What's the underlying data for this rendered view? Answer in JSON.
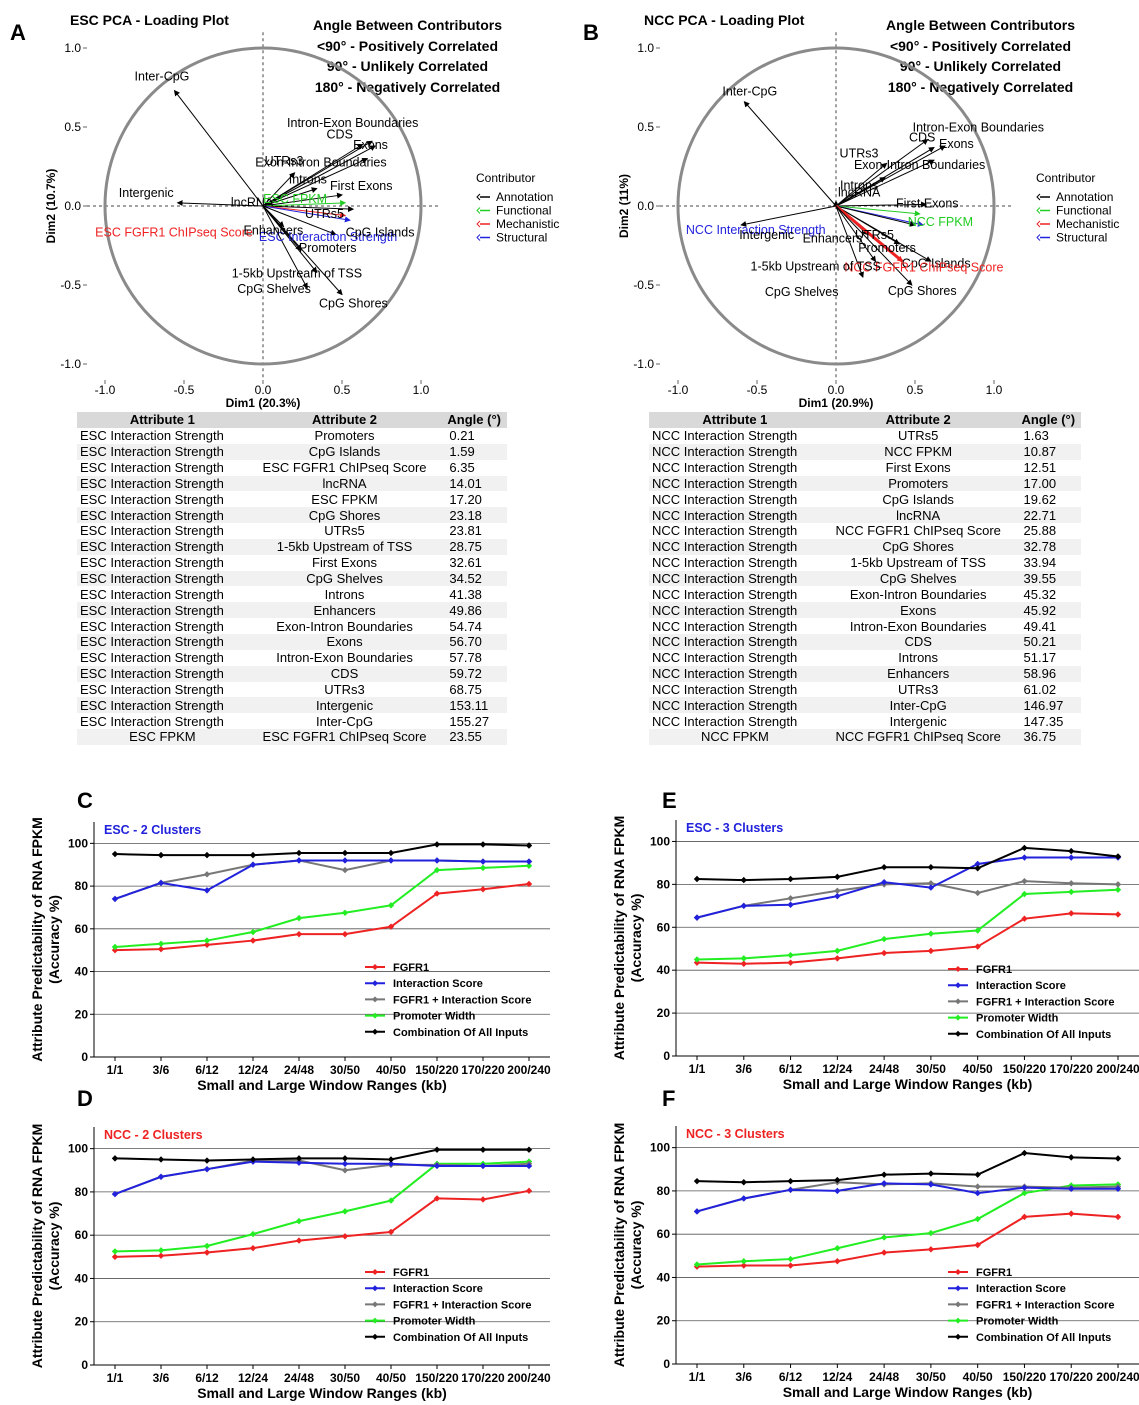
{
  "panels": {
    "A": "A",
    "B": "B",
    "C": "C",
    "D": "D",
    "E": "E",
    "F": "F"
  },
  "pca_legend": {
    "line1": "Angle Between Contributors",
    "line2": "<90° - Positively Correlated",
    "line3": "90° - Unlikely Correlated",
    "line4": "180° - Negatively Correlated",
    "title": "Contributor",
    "items": [
      {
        "label": "Annotation",
        "color": "#000000"
      },
      {
        "label": "Functional",
        "color": "#22cc22"
      },
      {
        "label": "Mechanistic",
        "color": "#ee2222"
      },
      {
        "label": "Structural",
        "color": "#2222dd"
      }
    ]
  },
  "tables": {
    "headers": [
      "Attribute 1",
      "Attribute 2",
      "Angle (°)"
    ],
    "esc": [
      [
        "ESC Interaction Strength",
        "Promoters",
        "0.21"
      ],
      [
        "ESC Interaction Strength",
        "CpG Islands",
        "1.59"
      ],
      [
        "ESC Interaction Strength",
        "ESC FGFR1 ChIPseq Score",
        "6.35"
      ],
      [
        "ESC Interaction Strength",
        "lncRNA",
        "14.01"
      ],
      [
        "ESC Interaction Strength",
        "ESC FPKM",
        "17.20"
      ],
      [
        "ESC Interaction Strength",
        "CpG Shores",
        "23.18"
      ],
      [
        "ESC Interaction Strength",
        "UTRs5",
        "23.81"
      ],
      [
        "ESC Interaction Strength",
        "1-5kb Upstream of TSS",
        "28.75"
      ],
      [
        "ESC Interaction Strength",
        "First Exons",
        "32.61"
      ],
      [
        "ESC Interaction Strength",
        "CpG Shelves",
        "34.52"
      ],
      [
        "ESC Interaction Strength",
        "Introns",
        "41.38"
      ],
      [
        "ESC Interaction Strength",
        "Enhancers",
        "49.86"
      ],
      [
        "ESC Interaction Strength",
        "Exon-Intron Boundaries",
        "54.74"
      ],
      [
        "ESC Interaction Strength",
        "Exons",
        "56.70"
      ],
      [
        "ESC Interaction Strength",
        "Intron-Exon Boundaries",
        "57.78"
      ],
      [
        "ESC Interaction Strength",
        "CDS",
        "59.72"
      ],
      [
        "ESC Interaction Strength",
        "UTRs3",
        "68.75"
      ],
      [
        "ESC Interaction Strength",
        "Intergenic",
        "153.11"
      ],
      [
        "ESC Interaction Strength",
        "Inter-CpG",
        "155.27"
      ],
      [
        "ESC FPKM",
        "ESC FGFR1 ChIPseq Score",
        "23.55"
      ]
    ],
    "ncc": [
      [
        "NCC Interaction Strength",
        "UTRs5",
        "1.63"
      ],
      [
        "NCC Interaction Strength",
        "NCC FPKM",
        "10.87"
      ],
      [
        "NCC Interaction Strength",
        "First Exons",
        "12.51"
      ],
      [
        "NCC Interaction Strength",
        "Promoters",
        "17.00"
      ],
      [
        "NCC Interaction Strength",
        "CpG Islands",
        "19.62"
      ],
      [
        "NCC Interaction Strength",
        "lncRNA",
        "22.71"
      ],
      [
        "NCC Interaction Strength",
        "NCC FGFR1 ChIPseq Score",
        "25.88"
      ],
      [
        "NCC Interaction Strength",
        "CpG Shores",
        "32.78"
      ],
      [
        "NCC Interaction Strength",
        "1-5kb Upstream of TSS",
        "33.94"
      ],
      [
        "NCC Interaction Strength",
        "CpG Shelves",
        "39.55"
      ],
      [
        "NCC Interaction Strength",
        "Exon-Intron Boundaries",
        "45.32"
      ],
      [
        "NCC Interaction Strength",
        "Exons",
        "45.92"
      ],
      [
        "NCC Interaction Strength",
        "Intron-Exon Boundaries",
        "49.41"
      ],
      [
        "NCC Interaction Strength",
        "CDS",
        "50.21"
      ],
      [
        "NCC Interaction Strength",
        "Introns",
        "51.17"
      ],
      [
        "NCC Interaction Strength",
        "Enhancers",
        "58.96"
      ],
      [
        "NCC Interaction Strength",
        "UTRs3",
        "61.02"
      ],
      [
        "NCC Interaction Strength",
        "Inter-CpG",
        "146.97"
      ],
      [
        "NCC Interaction Strength",
        "Intergenic",
        "147.35"
      ],
      [
        "NCC FPKM",
        "NCC FGFR1 ChIPseq Score",
        "36.75"
      ]
    ]
  },
  "chart_data": [
    {
      "id": "A",
      "type": "scatter",
      "title": "ESC PCA - Loading Plot",
      "xlabel": "Dim1 (20.3%)",
      "ylabel": "Dim2 (10.7%)",
      "xlim": [
        -1.0,
        1.0
      ],
      "ylim": [
        -1.0,
        1.0
      ],
      "ticks": [
        "-1.0",
        "-0.5",
        "0.0",
        "0.5",
        "1.0"
      ],
      "vectors": [
        {
          "label": "Inter-CpG",
          "x": -0.56,
          "y": 0.73,
          "type": "Annotation"
        },
        {
          "label": "Intron-Exon Boundaries",
          "x": 0.69,
          "y": 0.41,
          "type": "Annotation"
        },
        {
          "label": "CDS",
          "x": 0.63,
          "y": 0.39,
          "type": "Annotation"
        },
        {
          "label": "Exons",
          "x": 0.71,
          "y": 0.38,
          "type": "Annotation"
        },
        {
          "label": "Exon-Intron Boundaries",
          "x": 0.66,
          "y": 0.3,
          "type": "Annotation"
        },
        {
          "label": "UTRs3",
          "x": 0.2,
          "y": 0.21,
          "type": "Annotation"
        },
        {
          "label": "Introns",
          "x": 0.34,
          "y": 0.11,
          "type": "Annotation"
        },
        {
          "label": "First Exons",
          "x": 0.5,
          "y": 0.07,
          "type": "Annotation"
        },
        {
          "label": "UTRs5",
          "x": 0.57,
          "y": -0.02,
          "type": "Annotation"
        },
        {
          "label": "Intergenic",
          "x": -0.54,
          "y": 0.02,
          "type": "Annotation"
        },
        {
          "label": "lncRNA",
          "x": 0.05,
          "y": 0.01,
          "type": "Annotation"
        },
        {
          "label": "ESC FPKM",
          "x": 0.52,
          "y": 0.02,
          "type": "Functional"
        },
        {
          "label": "ESC FGFR1 ChIPseq Score",
          "x": 0.52,
          "y": -0.06,
          "type": "Mechanistic"
        },
        {
          "label": "ESC Interaction Strength",
          "x": 0.55,
          "y": -0.09,
          "type": "Structural"
        },
        {
          "label": "Enhancers",
          "x": 0.13,
          "y": -0.13,
          "type": "Annotation"
        },
        {
          "label": "CpG Islands",
          "x": 0.46,
          "y": -0.18,
          "type": "Annotation"
        },
        {
          "label": "Promoters",
          "x": 0.24,
          "y": -0.28,
          "type": "Annotation"
        },
        {
          "label": "1-5kb Upstream of TSS",
          "x": 0.34,
          "y": -0.42,
          "type": "Annotation"
        },
        {
          "label": "CpG Shelves",
          "x": 0.28,
          "y": -0.52,
          "type": "Annotation"
        },
        {
          "label": "CpG Shores",
          "x": 0.5,
          "y": -0.56,
          "type": "Annotation"
        }
      ]
    },
    {
      "id": "B",
      "type": "scatter",
      "title": "NCC PCA - Loading Plot",
      "xlabel": "Dim1 (20.9%)",
      "ylabel": "Dim2 (11%)",
      "xlim": [
        -1.0,
        1.0
      ],
      "ylim": [
        -1.0,
        1.0
      ],
      "ticks": [
        "-1.0",
        "-0.5",
        "0.0",
        "0.5",
        "1.0"
      ],
      "vectors": [
        {
          "label": "Inter-CpG",
          "x": -0.58,
          "y": 0.66,
          "type": "Annotation"
        },
        {
          "label": "Intron-Exon Boundaries",
          "x": 0.58,
          "y": 0.42,
          "type": "Annotation"
        },
        {
          "label": "CDS",
          "x": 0.62,
          "y": 0.37,
          "type": "Annotation"
        },
        {
          "label": "Exons",
          "x": 0.69,
          "y": 0.38,
          "type": "Annotation"
        },
        {
          "label": "UTRs3",
          "x": 0.32,
          "y": 0.27,
          "type": "Annotation"
        },
        {
          "label": "Exon-Intron Boundaries",
          "x": 0.62,
          "y": 0.29,
          "type": "Annotation"
        },
        {
          "label": "Introns",
          "x": 0.31,
          "y": 0.18,
          "type": "Annotation"
        },
        {
          "label": "First Exons",
          "x": 0.57,
          "y": 0.01,
          "type": "Annotation"
        },
        {
          "label": "lncRNA",
          "x": 0.0,
          "y": 0.03,
          "type": "Annotation"
        },
        {
          "label": "NCC FPKM",
          "x": 0.53,
          "y": -0.05,
          "type": "Functional"
        },
        {
          "label": "NCC Interaction Strength",
          "x": 0.55,
          "y": -0.12,
          "type": "Structural"
        },
        {
          "label": "Intergenic",
          "x": -0.6,
          "y": -0.12,
          "type": "Annotation"
        },
        {
          "label": "Enhancers",
          "x": 0.2,
          "y": -0.18,
          "type": "Annotation"
        },
        {
          "label": "UTRs5",
          "x": 0.5,
          "y": -0.12,
          "type": "Annotation"
        },
        {
          "label": "Promoters",
          "x": 0.4,
          "y": -0.24,
          "type": "Annotation"
        },
        {
          "label": "CpG Islands",
          "x": 0.6,
          "y": -0.35,
          "type": "Annotation"
        },
        {
          "label": "NCC FGFR1 ChIPseq Score",
          "x": 0.42,
          "y": -0.35,
          "type": "Mechanistic"
        },
        {
          "label": "1-5kb Upstream of TSS",
          "x": 0.25,
          "y": -0.35,
          "type": "Annotation"
        },
        {
          "label": "CpG Shelves",
          "x": 0.17,
          "y": -0.45,
          "type": "Annotation"
        },
        {
          "label": "CpG Shores",
          "x": 0.48,
          "y": -0.5,
          "type": "Annotation"
        }
      ]
    },
    {
      "id": "C",
      "type": "line",
      "subtitle": "ESC - 2 Clusters",
      "subtitle_color": "#2222dd",
      "xlabel": "Small and Large Window Ranges (kb)",
      "ylabel": "Attribute Predictability of RNA FPKM (Accuracy %)",
      "ylim": [
        0,
        110
      ],
      "yticks": [
        "0",
        "20",
        "40",
        "60",
        "80",
        "100"
      ],
      "categories": [
        "1/1",
        "3/6",
        "6/12",
        "12/24",
        "24/48",
        "30/50",
        "40/50",
        "150/220",
        "170/220",
        "200/240"
      ],
      "series": [
        {
          "name": "FGFR1",
          "color": "#ee2222",
          "values": [
            50,
            50.5,
            52.5,
            54.5,
            57.5,
            57.5,
            61,
            76.5,
            78.5,
            81
          ]
        },
        {
          "name": "Interaction Score",
          "color": "#2222dd",
          "values": [
            74,
            81.5,
            78,
            90,
            92,
            92,
            92,
            92,
            91.5,
            91.5
          ]
        },
        {
          "name": "FGFR1 + Interaction Score",
          "color": "#777777",
          "values": [
            74,
            81.5,
            85.5,
            90,
            92,
            87.5,
            92,
            92,
            91.5,
            91.5
          ]
        },
        {
          "name": "Promoter Width",
          "color": "#22ee22",
          "values": [
            51.5,
            53,
            54.5,
            58.5,
            65,
            67.5,
            71,
            87.5,
            88.5,
            89.5
          ]
        },
        {
          "name": "Combination Of All Inputs",
          "color": "#000000",
          "values": [
            95,
            94.5,
            94.5,
            94.5,
            95.5,
            95.5,
            95.5,
            99.5,
            99.5,
            99
          ]
        }
      ]
    },
    {
      "id": "D",
      "type": "line",
      "subtitle": "NCC - 2 Clusters",
      "subtitle_color": "#ee2222",
      "xlabel": "Small and Large Window Ranges (kb)",
      "ylabel": "Attribute Predictability of RNA FPKM (Accuracy %)",
      "ylim": [
        0,
        110
      ],
      "yticks": [
        "0",
        "20",
        "40",
        "60",
        "80",
        "100"
      ],
      "categories": [
        "1/1",
        "3/6",
        "6/12",
        "12/24",
        "24/48",
        "30/50",
        "40/50",
        "150/220",
        "170/220",
        "200/240"
      ],
      "series": [
        {
          "name": "FGFR1",
          "color": "#ee2222",
          "values": [
            50,
            50.5,
            52,
            54,
            57.5,
            59.5,
            61.5,
            77,
            76.5,
            80.5
          ]
        },
        {
          "name": "Interaction Score",
          "color": "#2222dd",
          "values": [
            79,
            87,
            90.5,
            94,
            93.5,
            93,
            93,
            92,
            92,
            92
          ]
        },
        {
          "name": "FGFR1 + Interaction Score",
          "color": "#777777",
          "values": [
            79,
            87,
            90.5,
            94.5,
            94.5,
            90,
            92.5,
            92.5,
            92,
            93
          ]
        },
        {
          "name": "Promoter Width",
          "color": "#22ee22",
          "values": [
            52.5,
            53,
            55,
            60.5,
            66.5,
            71,
            76,
            93,
            93,
            94
          ]
        },
        {
          "name": "Combination Of All Inputs",
          "color": "#000000",
          "values": [
            95.5,
            95,
            94.5,
            95,
            95.5,
            95.5,
            95,
            99.5,
            99.5,
            99.5
          ]
        }
      ]
    },
    {
      "id": "E",
      "type": "line",
      "subtitle": "ESC - 3 Clusters",
      "subtitle_color": "#2222dd",
      "xlabel": "Small and Large Window Ranges (kb)",
      "ylabel": "Attribute Predictability of RNA FPKM (Accuracy %)",
      "ylim": [
        0,
        110
      ],
      "yticks": [
        "0",
        "20",
        "40",
        "60",
        "80",
        "100"
      ],
      "categories": [
        "1/1",
        "3/6",
        "6/12",
        "12/24",
        "24/48",
        "30/50",
        "40/50",
        "150/220",
        "170/220",
        "200/240"
      ],
      "series": [
        {
          "name": "FGFR1",
          "color": "#ee2222",
          "values": [
            43.5,
            43,
            43.5,
            45.5,
            48,
            49,
            51,
            64,
            66.5,
            66
          ]
        },
        {
          "name": "Interaction Score",
          "color": "#2222dd",
          "values": [
            64.5,
            70,
            70.5,
            74.5,
            81,
            78.5,
            89.5,
            92.5,
            92.5,
            92.5
          ]
        },
        {
          "name": "FGFR1 + Interaction Score",
          "color": "#777777",
          "values": [
            64.5,
            70,
            73.5,
            77,
            80,
            80.5,
            76,
            81.5,
            80.5,
            80
          ]
        },
        {
          "name": "Promoter Width",
          "color": "#22ee22",
          "values": [
            45,
            45.5,
            47,
            49,
            54.5,
            57,
            58.5,
            75.5,
            76.5,
            77.5
          ]
        },
        {
          "name": "Combination Of All Inputs",
          "color": "#000000",
          "values": [
            82.5,
            82,
            82.5,
            83.5,
            88,
            88,
            87.5,
            97,
            95.5,
            93
          ]
        }
      ]
    },
    {
      "id": "F",
      "type": "line",
      "subtitle": "NCC - 3 Clusters",
      "subtitle_color": "#ee2222",
      "xlabel": "Small and Large Window Ranges (kb)",
      "ylabel": "Attribute Predictability of RNA FPKM (Accuracy %)",
      "ylim": [
        0,
        110
      ],
      "yticks": [
        "0",
        "20",
        "40",
        "60",
        "80",
        "100"
      ],
      "categories": [
        "1/1",
        "3/6",
        "6/12",
        "12/24",
        "24/48",
        "30/50",
        "40/50",
        "150/220",
        "170/220",
        "200/240"
      ],
      "series": [
        {
          "name": "FGFR1",
          "color": "#ee2222",
          "values": [
            45,
            45.5,
            45.5,
            47.5,
            51.5,
            53,
            55,
            68,
            69.5,
            68
          ]
        },
        {
          "name": "Interaction Score",
          "color": "#2222dd",
          "values": [
            70.5,
            76.5,
            80.5,
            80,
            83.5,
            83,
            79,
            81.5,
            81,
            81
          ]
        },
        {
          "name": "FGFR1 + Interaction Score",
          "color": "#777777",
          "values": [
            70.5,
            76.5,
            80.5,
            84,
            83,
            83.5,
            82,
            82,
            81.5,
            82
          ]
        },
        {
          "name": "Promoter Width",
          "color": "#22ee22",
          "values": [
            46,
            47.5,
            48.5,
            53.5,
            58.5,
            60.5,
            67,
            79,
            82.5,
            83
          ]
        },
        {
          "name": "Combination Of All Inputs",
          "color": "#000000",
          "values": [
            84.5,
            84,
            84.5,
            85,
            87.5,
            88,
            87.5,
            97.5,
            95.5,
            95
          ]
        }
      ]
    }
  ]
}
